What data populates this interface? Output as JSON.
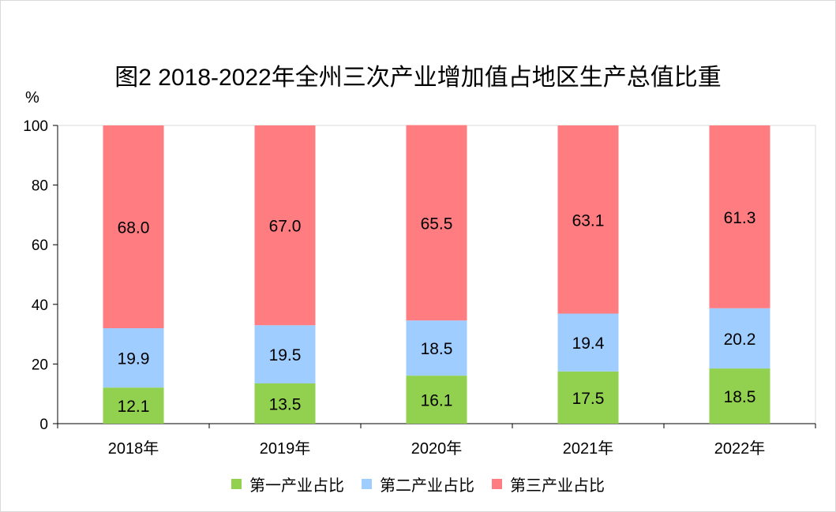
{
  "chart_data": {
    "type": "bar",
    "stacked": true,
    "title": "图2  2018-2022年全州三次产业增加值占地区生产总值比重",
    "ylabel": "%",
    "ylim": [
      0,
      100
    ],
    "yticks": [
      "0",
      "20",
      "40",
      "60",
      "80",
      "100"
    ],
    "categories": [
      "2018年",
      "2019年",
      "2020年",
      "2021年",
      "2022年"
    ],
    "series": [
      {
        "name": "第一产业占比",
        "color": "#92d050",
        "values": [
          12.1,
          13.5,
          16.1,
          17.5,
          18.5
        ]
      },
      {
        "name": "第二产业占比",
        "color": "#9fcdff",
        "values": [
          19.9,
          19.5,
          18.5,
          19.4,
          20.2
        ]
      },
      {
        "name": "第三产业占比",
        "color": "#ff7c80",
        "values": [
          68.0,
          67.0,
          65.5,
          63.1,
          61.3
        ]
      }
    ],
    "data_labels": [
      [
        "12.1",
        "13.5",
        "16.1",
        "17.5",
        "18.5"
      ],
      [
        "19.9",
        "19.5",
        "18.5",
        "19.4",
        "20.2"
      ],
      [
        "68.0",
        "67.0",
        "65.5",
        "63.1",
        "61.3"
      ]
    ],
    "grid": false,
    "legend_position": "bottom"
  }
}
